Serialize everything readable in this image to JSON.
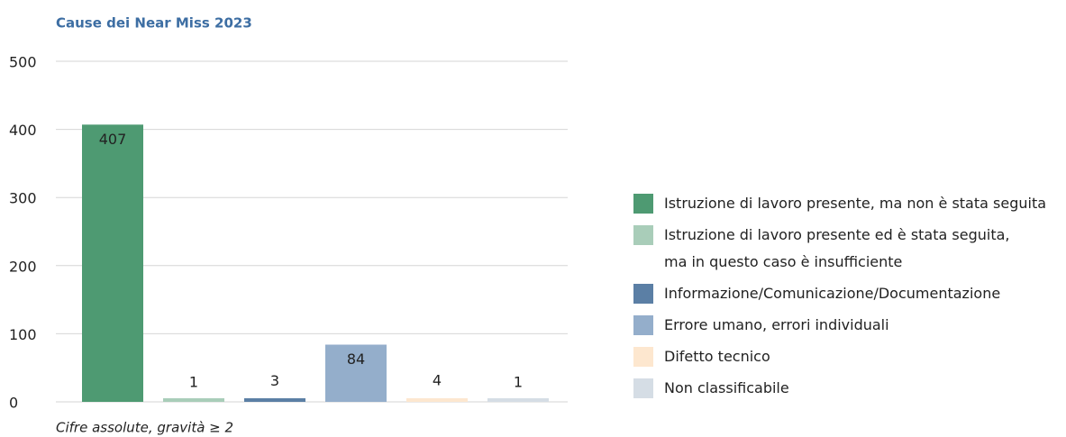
{
  "chart_data": {
    "type": "bar",
    "title": "Cause dei Near Miss 2023",
    "note": "Cifre assolute, gravità ≥ 2",
    "categories": [
      "Istruzione di lavoro presente, ma non è stata seguita",
      "Istruzione di lavoro presente ed è stata seguita,\nma in questo caso è insufficiente",
      "Informazione/Comunicazione/Documentazione",
      "Errore umano, errori individuali",
      "Difetto tecnico",
      "Non classificabile"
    ],
    "values": [
      407,
      1,
      3,
      84,
      4,
      1
    ],
    "colors": [
      "#4e9a72",
      "#a9cdb9",
      "#5b7fa5",
      "#94aecb",
      "#fde7cf",
      "#d5dde5"
    ],
    "ylim": [
      0,
      500
    ],
    "yticks": [
      0,
      100,
      200,
      300,
      400,
      500
    ],
    "grid": true,
    "legend": "right"
  }
}
